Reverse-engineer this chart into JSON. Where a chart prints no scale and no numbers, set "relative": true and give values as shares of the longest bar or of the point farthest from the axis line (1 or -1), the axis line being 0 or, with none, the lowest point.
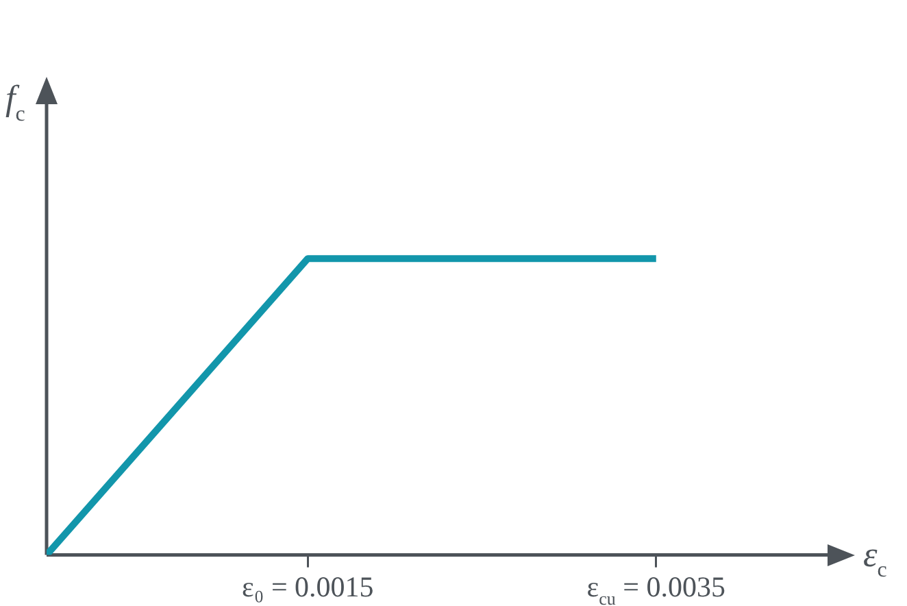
{
  "chart_data": {
    "type": "line",
    "relative": true,
    "xlabel": "ε$_{c}$",
    "ylabel": "f$_{c}$",
    "x": [
      0,
      0.0015,
      0.0035
    ],
    "xlim": [
      0,
      0.0045
    ],
    "xticks": [
      {
        "value": 0.0015,
        "label": "ε₀ = 0.0015"
      },
      {
        "value": 0.0035,
        "label": "ε$_{cu}$ = 0.0035"
      }
    ],
    "series": [
      {
        "color": "#1296ab",
        "values": [
          0,
          1,
          1
        ]
      }
    ],
    "marker": "none",
    "legend": false
  }
}
